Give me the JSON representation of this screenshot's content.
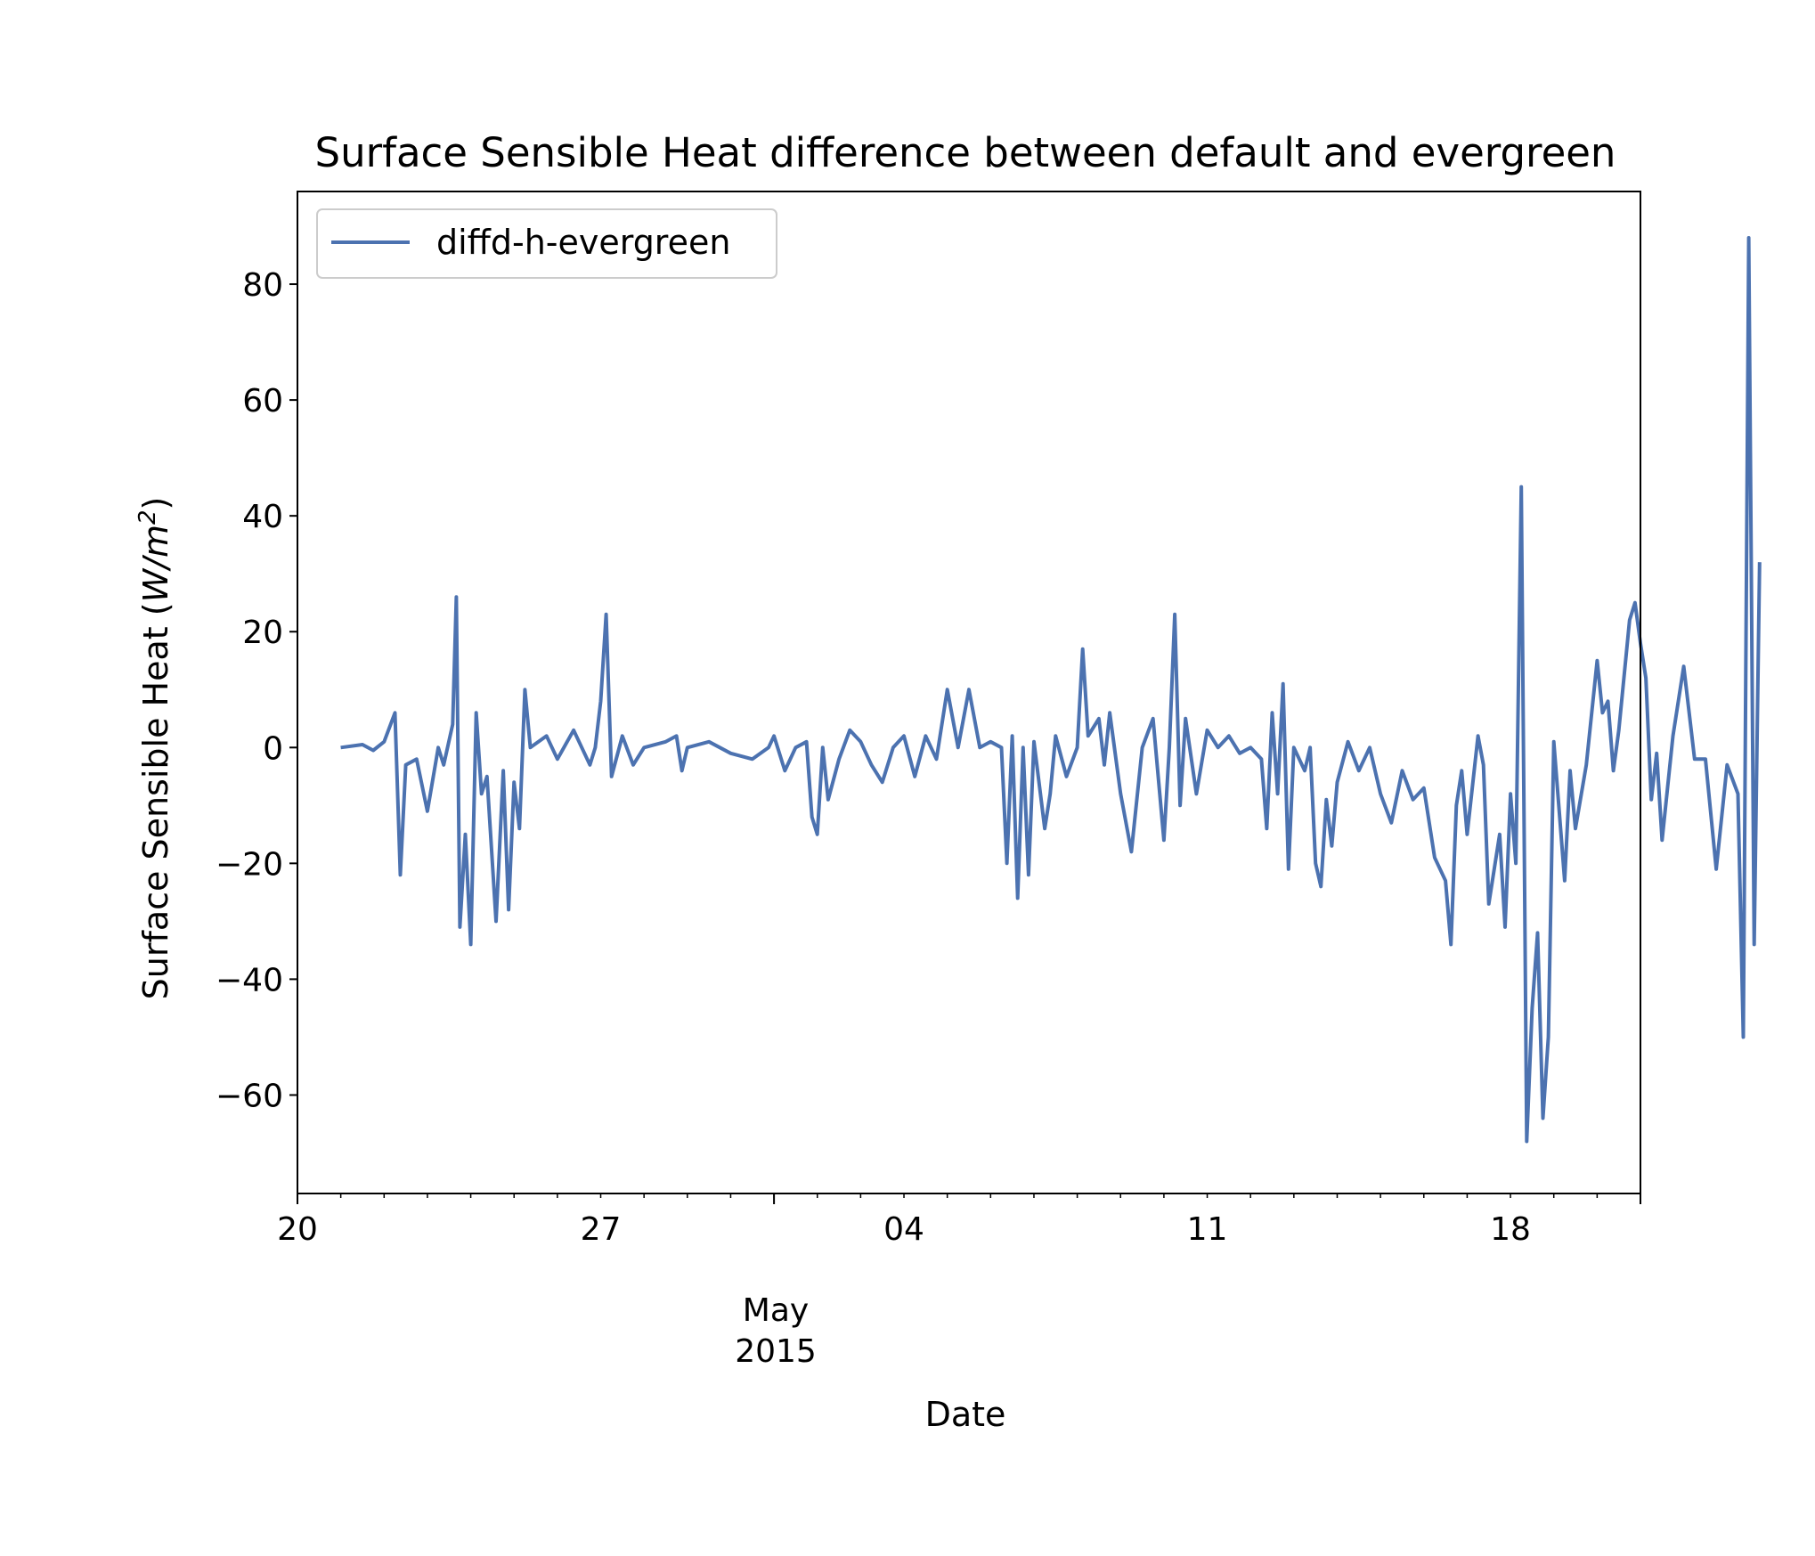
{
  "chart_data": {
    "type": "line",
    "title": "Surface Sensible Heat difference between default and evergreen",
    "xlabel": "Date",
    "ylabel": "Surface Sensible Heat",
    "ylabel_unit": "W/m",
    "ylabel_unit_exp": "2",
    "xlim": [
      "2015-04-20",
      "2015-05-21"
    ],
    "ylim": [
      -77,
      96
    ],
    "yticks": [
      80,
      60,
      40,
      20,
      0,
      -20,
      -40,
      -60
    ],
    "ytick_labels": [
      "80",
      "60",
      "40",
      "20",
      "0",
      "−20",
      "−40",
      "−60"
    ],
    "xticks": [
      {
        "date": "2015-04-20",
        "label": "20"
      },
      {
        "date": "2015-04-27",
        "label": "27"
      },
      {
        "date": "2015-05-04",
        "label": "04"
      },
      {
        "date": "2015-05-11",
        "label": "11"
      },
      {
        "date": "2015-05-18",
        "label": "18"
      }
    ],
    "month_label": "May",
    "year_label": "2015",
    "grid": false,
    "legend_position": "upper-left",
    "line_color": "#4c72b0",
    "series": [
      {
        "name": "diffd-h-evergreen",
        "points": [
          [
            "2015-04-21",
            0
          ],
          [
            "2015-04-21T12",
            0.5
          ],
          [
            "2015-04-21T18",
            -0.5
          ],
          [
            "2015-04-22",
            1
          ],
          [
            "2015-04-22T06",
            6
          ],
          [
            "2015-04-22T09",
            -22
          ],
          [
            "2015-04-22T12",
            -3
          ],
          [
            "2015-04-22T18",
            -2
          ],
          [
            "2015-04-23",
            -11
          ],
          [
            "2015-04-23T06",
            0
          ],
          [
            "2015-04-23T09",
            -3
          ],
          [
            "2015-04-23T14",
            4
          ],
          [
            "2015-04-23T16",
            26
          ],
          [
            "2015-04-23T18",
            -31
          ],
          [
            "2015-04-23T21",
            -15
          ],
          [
            "2015-04-24",
            -34
          ],
          [
            "2015-04-24T03",
            6
          ],
          [
            "2015-04-24T06",
            -8
          ],
          [
            "2015-04-24T09",
            -5
          ],
          [
            "2015-04-24T14",
            -30
          ],
          [
            "2015-04-24T18",
            -4
          ],
          [
            "2015-04-24T21",
            -28
          ],
          [
            "2015-04-25",
            -6
          ],
          [
            "2015-04-25T03",
            -14
          ],
          [
            "2015-04-25T06",
            10
          ],
          [
            "2015-04-25T09",
            0
          ],
          [
            "2015-04-25T18",
            2
          ],
          [
            "2015-04-26",
            -2
          ],
          [
            "2015-04-26T09",
            3
          ],
          [
            "2015-04-26T18",
            -3
          ],
          [
            "2015-04-26T21",
            0
          ],
          [
            "2015-04-27",
            8
          ],
          [
            "2015-04-27T03",
            23
          ],
          [
            "2015-04-27T06",
            -5
          ],
          [
            "2015-04-27T12",
            2
          ],
          [
            "2015-04-27T18",
            -3
          ],
          [
            "2015-04-28",
            0
          ],
          [
            "2015-04-28T12",
            1
          ],
          [
            "2015-04-28T18",
            2
          ],
          [
            "2015-04-28T21",
            -4
          ],
          [
            "2015-04-29",
            0
          ],
          [
            "2015-04-29T12",
            1
          ],
          [
            "2015-04-30",
            -1
          ],
          [
            "2015-04-30T12",
            -2
          ],
          [
            "2015-04-30T21",
            0
          ],
          [
            "2015-05-01",
            2
          ],
          [
            "2015-05-01T06",
            -4
          ],
          [
            "2015-05-01T12",
            0
          ],
          [
            "2015-05-01T18",
            1
          ],
          [
            "2015-05-01T21",
            -12
          ],
          [
            "2015-05-02",
            -15
          ],
          [
            "2015-05-02T03",
            0
          ],
          [
            "2015-05-02T06",
            -9
          ],
          [
            "2015-05-02T12",
            -2
          ],
          [
            "2015-05-02T18",
            3
          ],
          [
            "2015-05-03",
            1
          ],
          [
            "2015-05-03T06",
            -3
          ],
          [
            "2015-05-03T12",
            -6
          ],
          [
            "2015-05-03T18",
            0
          ],
          [
            "2015-05-04",
            2
          ],
          [
            "2015-05-04T06",
            -5
          ],
          [
            "2015-05-04T12",
            2
          ],
          [
            "2015-05-04T18",
            -2
          ],
          [
            "2015-05-05",
            10
          ],
          [
            "2015-05-05T06",
            0
          ],
          [
            "2015-05-05T12",
            10
          ],
          [
            "2015-05-05T18",
            0
          ],
          [
            "2015-05-06",
            1
          ],
          [
            "2015-05-06T06",
            0
          ],
          [
            "2015-05-06T09",
            -20
          ],
          [
            "2015-05-06T12",
            2
          ],
          [
            "2015-05-06T15",
            -26
          ],
          [
            "2015-05-06T18",
            0
          ],
          [
            "2015-05-06T21",
            -22
          ],
          [
            "2015-05-07",
            1
          ],
          [
            "2015-05-07T06",
            -14
          ],
          [
            "2015-05-07T09",
            -8
          ],
          [
            "2015-05-07T12",
            2
          ],
          [
            "2015-05-07T18",
            -5
          ],
          [
            "2015-05-08",
            0
          ],
          [
            "2015-05-08T03",
            17
          ],
          [
            "2015-05-08T06",
            2
          ],
          [
            "2015-05-08T12",
            5
          ],
          [
            "2015-05-08T15",
            -3
          ],
          [
            "2015-05-08T18",
            6
          ],
          [
            "2015-05-09",
            -8
          ],
          [
            "2015-05-09T06",
            -18
          ],
          [
            "2015-05-09T12",
            0
          ],
          [
            "2015-05-09T18",
            5
          ],
          [
            "2015-05-10",
            -16
          ],
          [
            "2015-05-10T03",
            0
          ],
          [
            "2015-05-10T06",
            23
          ],
          [
            "2015-05-10T09",
            -10
          ],
          [
            "2015-05-10T12",
            5
          ],
          [
            "2015-05-10T18",
            -8
          ],
          [
            "2015-05-11",
            3
          ],
          [
            "2015-05-11T06",
            0
          ],
          [
            "2015-05-11T12",
            2
          ],
          [
            "2015-05-11T18",
            -1
          ],
          [
            "2015-05-12",
            0
          ],
          [
            "2015-05-12T06",
            -2
          ],
          [
            "2015-05-12T09",
            -14
          ],
          [
            "2015-05-12T12",
            6
          ],
          [
            "2015-05-12T15",
            -8
          ],
          [
            "2015-05-12T18",
            11
          ],
          [
            "2015-05-12T21",
            -21
          ],
          [
            "2015-05-13",
            0
          ],
          [
            "2015-05-13T06",
            -4
          ],
          [
            "2015-05-13T09",
            0
          ],
          [
            "2015-05-13T12",
            -20
          ],
          [
            "2015-05-13T15",
            -24
          ],
          [
            "2015-05-13T18",
            -9
          ],
          [
            "2015-05-13T21",
            -17
          ],
          [
            "2015-05-14",
            -6
          ],
          [
            "2015-05-14T06",
            1
          ],
          [
            "2015-05-14T12",
            -4
          ],
          [
            "2015-05-14T18",
            0
          ],
          [
            "2015-05-15",
            -8
          ],
          [
            "2015-05-15T06",
            -13
          ],
          [
            "2015-05-15T12",
            -4
          ],
          [
            "2015-05-15T18",
            -9
          ],
          [
            "2015-05-16",
            -7
          ],
          [
            "2015-05-16T06",
            -19
          ],
          [
            "2015-05-16T12",
            -23
          ],
          [
            "2015-05-16T15",
            -34
          ],
          [
            "2015-05-16T18",
            -10
          ],
          [
            "2015-05-16T21",
            -4
          ],
          [
            "2015-05-17",
            -15
          ],
          [
            "2015-05-17T06",
            2
          ],
          [
            "2015-05-17T09",
            -3
          ],
          [
            "2015-05-17T12",
            -27
          ],
          [
            "2015-05-17T18",
            -15
          ],
          [
            "2015-05-17T21",
            -31
          ],
          [
            "2015-05-18",
            -8
          ],
          [
            "2015-05-18T03",
            -20
          ],
          [
            "2015-05-18T06",
            45
          ],
          [
            "2015-05-18T09",
            -68
          ],
          [
            "2015-05-18T12",
            -45
          ],
          [
            "2015-05-18T15",
            -32
          ],
          [
            "2015-05-18T18",
            -64
          ],
          [
            "2015-05-18T21",
            -50
          ],
          [
            "2015-05-19",
            1
          ],
          [
            "2015-05-19T06",
            -23
          ],
          [
            "2015-05-19T09",
            -4
          ],
          [
            "2015-05-19T12",
            -14
          ],
          [
            "2015-05-19T18",
            -3
          ],
          [
            "2015-05-20",
            15
          ],
          [
            "2015-05-20T03",
            6
          ],
          [
            "2015-05-20T06",
            8
          ],
          [
            "2015-05-20T09",
            -4
          ],
          [
            "2015-05-20T12",
            3
          ],
          [
            "2015-05-20T18",
            22
          ],
          [
            "2015-05-20T21",
            25
          ],
          [
            "2015-05-21",
            18
          ],
          [
            "2015-05-21T03",
            12
          ],
          [
            "2015-05-21T06",
            -9
          ],
          [
            "2015-05-21T09",
            -1
          ],
          [
            "2015-05-21T12",
            -16
          ],
          [
            "2015-05-21T18",
            2
          ],
          [
            "2015-05-22",
            14
          ],
          [
            "2015-05-22T06",
            -2
          ],
          [
            "2015-05-22T12",
            -2
          ],
          [
            "2015-05-22T18",
            -21
          ],
          [
            "2015-05-23",
            -3
          ],
          [
            "2015-05-23T06",
            -8
          ],
          [
            "2015-05-23T09",
            -50
          ],
          [
            "2015-05-23T12",
            88
          ],
          [
            "2015-05-23T15",
            -34
          ],
          [
            "2015-05-23T18",
            32
          ]
        ]
      }
    ]
  }
}
